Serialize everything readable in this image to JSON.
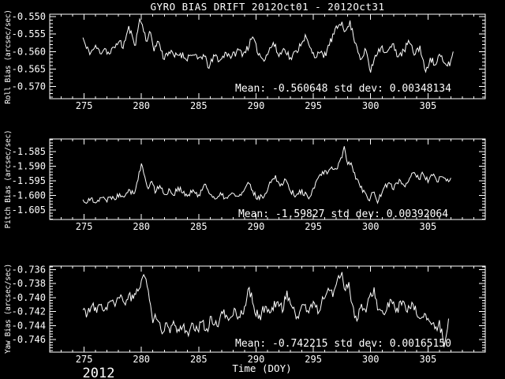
{
  "title": "GYRO BIAS DRIFT 2012Oct01 - 2012Oct31",
  "colors": {
    "background": "#000000",
    "foreground": "#ffffff"
  },
  "chart_data": {
    "type": "line",
    "title": "GYRO BIAS DRIFT 2012Oct01 - 2012Oct31",
    "xlabel": "Time (DOY)",
    "year_label": "2012",
    "xlim": [
      272,
      310
    ],
    "xticks": [
      275,
      280,
      285,
      290,
      295,
      300,
      305
    ],
    "x_minor_step": 1,
    "grid": false,
    "legend": "none",
    "panels": [
      {
        "name": "roll",
        "ylabel": "Roll Bias (arcsec/sec)",
        "ylim": [
          -0.5735,
          -0.5493
        ],
        "yticks": [
          -0.55,
          -0.555,
          -0.56,
          -0.565,
          -0.57
        ],
        "ytick_decimals": 3,
        "y_minor_step": 0.001,
        "mean": -0.560648,
        "std_dev": 0.00348134,
        "annotation": "Mean: -0.560648 std dev: 0.00348134",
        "noise_amp": 0.0011,
        "seed": 11,
        "series": {
          "x": [
            274.9,
            275.2,
            275.6,
            276.0,
            276.4,
            276.8,
            277.2,
            277.6,
            278.0,
            278.4,
            278.9,
            279.2,
            279.5,
            279.85,
            280.2,
            280.5,
            280.8,
            281.1,
            281.5,
            281.9,
            282.4,
            282.9,
            283.4,
            283.9,
            284.4,
            284.9,
            285.4,
            285.9,
            286.4,
            286.9,
            287.4,
            287.9,
            288.4,
            288.9,
            289.4,
            289.7,
            290.1,
            290.6,
            291.1,
            291.5,
            292.0,
            292.5,
            293.0,
            293.5,
            294.0,
            294.3,
            294.7,
            295.1,
            295.5,
            295.9,
            296.4,
            296.8,
            297.2,
            297.5,
            297.8,
            298.2,
            298.5,
            298.8,
            299.2,
            299.6,
            300.0,
            300.4,
            300.9,
            301.4,
            301.9,
            302.4,
            302.9,
            303.3,
            303.8,
            304.3,
            304.8,
            305.2,
            305.6,
            306.0,
            306.4,
            306.9,
            307.2
          ],
          "y": [
            -0.556,
            -0.5592,
            -0.5602,
            -0.5585,
            -0.5603,
            -0.559,
            -0.5608,
            -0.559,
            -0.557,
            -0.5588,
            -0.553,
            -0.5558,
            -0.5578,
            -0.5505,
            -0.554,
            -0.557,
            -0.5545,
            -0.5595,
            -0.557,
            -0.5618,
            -0.56,
            -0.5615,
            -0.5605,
            -0.562,
            -0.5608,
            -0.5622,
            -0.561,
            -0.5645,
            -0.5612,
            -0.5625,
            -0.5602,
            -0.5615,
            -0.5595,
            -0.5605,
            -0.5582,
            -0.556,
            -0.5598,
            -0.5622,
            -0.56,
            -0.5575,
            -0.5612,
            -0.559,
            -0.562,
            -0.56,
            -0.5572,
            -0.5555,
            -0.559,
            -0.5615,
            -0.56,
            -0.5618,
            -0.558,
            -0.555,
            -0.5525,
            -0.5512,
            -0.5545,
            -0.5515,
            -0.5555,
            -0.5585,
            -0.5625,
            -0.5595,
            -0.566,
            -0.561,
            -0.5585,
            -0.5605,
            -0.558,
            -0.5612,
            -0.56,
            -0.557,
            -0.5608,
            -0.5585,
            -0.5662,
            -0.5615,
            -0.564,
            -0.561,
            -0.5635,
            -0.5638,
            -0.56
          ]
        }
      },
      {
        "name": "pitch",
        "ylabel": "Pitch Bias (arcsec/sec)",
        "ylim": [
          -1.6082,
          -1.5807
        ],
        "yticks": [
          -1.585,
          -1.59,
          -1.595,
          -1.6,
          -1.605
        ],
        "ytick_decimals": 3,
        "y_minor_step": 0.001,
        "mean": -1.59827,
        "std_dev": 0.00392064,
        "annotation": "Mean: -1.59827 std dev: 0.00392064",
        "noise_amp": 0.0011,
        "seed": 22,
        "series": {
          "x": [
            274.9,
            275.3,
            275.7,
            276.1,
            276.5,
            276.9,
            277.3,
            277.7,
            278.1,
            278.5,
            278.9,
            279.3,
            279.7,
            280.0,
            280.3,
            280.6,
            280.9,
            281.2,
            281.6,
            282.0,
            282.4,
            282.8,
            283.2,
            283.6,
            284.0,
            284.5,
            285.0,
            285.5,
            286.0,
            286.5,
            287.0,
            287.5,
            288.0,
            288.5,
            289.0,
            289.4,
            289.8,
            290.3,
            290.8,
            291.3,
            291.7,
            292.1,
            292.6,
            293.0,
            293.5,
            294.0,
            294.5,
            295.0,
            295.4,
            295.8,
            296.2,
            296.6,
            297.0,
            297.4,
            297.7,
            298.0,
            298.3,
            298.6,
            299.0,
            299.4,
            299.8,
            300.2,
            300.6,
            301.0,
            301.5,
            302.0,
            302.5,
            303.0,
            303.4,
            303.8,
            304.2,
            304.6,
            305.0,
            305.4,
            305.8,
            306.2,
            306.6,
            307.0
          ],
          "y": [
            -1.6015,
            -1.6022,
            -1.601,
            -1.602,
            -1.6005,
            -1.6018,
            -1.6,
            -1.6012,
            -1.5992,
            -1.6002,
            -1.5975,
            -1.5995,
            -1.5945,
            -1.589,
            -1.594,
            -1.5975,
            -1.5952,
            -1.5988,
            -1.5962,
            -1.6,
            -1.5978,
            -1.5998,
            -1.5972,
            -1.5992,
            -1.6002,
            -1.5985,
            -1.5998,
            -1.5962,
            -1.5992,
            -1.6015,
            -1.5998,
            -1.601,
            -1.5992,
            -1.6005,
            -1.5982,
            -1.5958,
            -1.5995,
            -1.6012,
            -1.5992,
            -1.5952,
            -1.5932,
            -1.5968,
            -1.5942,
            -1.5982,
            -1.6002,
            -1.5982,
            -1.6008,
            -1.5978,
            -1.5945,
            -1.592,
            -1.5928,
            -1.5905,
            -1.5912,
            -1.5875,
            -1.5835,
            -1.5895,
            -1.5885,
            -1.5925,
            -1.5958,
            -1.5985,
            -1.6015,
            -1.5988,
            -1.6022,
            -1.5985,
            -1.5958,
            -1.5978,
            -1.5945,
            -1.5968,
            -1.5938,
            -1.5918,
            -1.5948,
            -1.5925,
            -1.5952,
            -1.593,
            -1.5955,
            -1.5935,
            -1.5948,
            -1.594
          ]
        }
      },
      {
        "name": "yaw",
        "ylabel": "Yaw Bias (arcsec/sec)",
        "ylim": [
          -0.7478,
          -0.7355
        ],
        "yticks": [
          -0.736,
          -0.738,
          -0.74,
          -0.742,
          -0.744,
          -0.746
        ],
        "ytick_decimals": 3,
        "y_minor_step": 0.0004,
        "mean": -0.742215,
        "std_dev": 0.0016515,
        "annotation": "Mean: -0.742215 std dev: 0.00165150",
        "noise_amp": 0.00075,
        "seed": 33,
        "series": {
          "x": [
            274.9,
            275.3,
            275.7,
            276.1,
            276.5,
            276.9,
            277.3,
            277.7,
            278.1,
            278.5,
            278.9,
            279.3,
            279.7,
            280.1,
            280.4,
            280.7,
            281.0,
            281.3,
            281.7,
            282.1,
            282.5,
            282.9,
            283.3,
            283.7,
            284.1,
            284.5,
            284.9,
            285.3,
            285.7,
            286.1,
            286.6,
            287.1,
            287.6,
            288.1,
            288.6,
            289.1,
            289.4,
            289.8,
            290.3,
            290.8,
            291.3,
            291.8,
            292.3,
            292.7,
            293.1,
            293.6,
            294.1,
            294.6,
            295.1,
            295.5,
            295.9,
            296.3,
            296.7,
            297.1,
            297.5,
            297.8,
            298.1,
            298.4,
            298.8,
            299.2,
            299.6,
            300.0,
            300.3,
            300.7,
            301.2,
            301.7,
            302.2,
            302.7,
            303.2,
            303.7,
            304.2,
            304.7,
            305.2,
            305.6,
            306.0,
            306.4,
            306.8
          ],
          "y": [
            -0.7418,
            -0.7422,
            -0.7413,
            -0.742,
            -0.741,
            -0.7416,
            -0.7405,
            -0.7412,
            -0.74,
            -0.7408,
            -0.7396,
            -0.7404,
            -0.739,
            -0.7368,
            -0.7372,
            -0.7405,
            -0.7438,
            -0.7428,
            -0.7448,
            -0.7438,
            -0.745,
            -0.7438,
            -0.7448,
            -0.744,
            -0.7452,
            -0.744,
            -0.7448,
            -0.7435,
            -0.7445,
            -0.743,
            -0.744,
            -0.7422,
            -0.7432,
            -0.7418,
            -0.7428,
            -0.741,
            -0.7385,
            -0.7415,
            -0.7428,
            -0.7412,
            -0.7422,
            -0.7405,
            -0.7418,
            -0.7392,
            -0.7412,
            -0.7428,
            -0.741,
            -0.742,
            -0.7408,
            -0.742,
            -0.74,
            -0.7388,
            -0.7398,
            -0.7372,
            -0.7365,
            -0.739,
            -0.7378,
            -0.741,
            -0.7435,
            -0.741,
            -0.7422,
            -0.7395,
            -0.7388,
            -0.7418,
            -0.7425,
            -0.7405,
            -0.7418,
            -0.7408,
            -0.742,
            -0.7412,
            -0.7428,
            -0.7422,
            -0.7438,
            -0.7445,
            -0.7435,
            -0.7468,
            -0.743
          ]
        }
      }
    ]
  }
}
